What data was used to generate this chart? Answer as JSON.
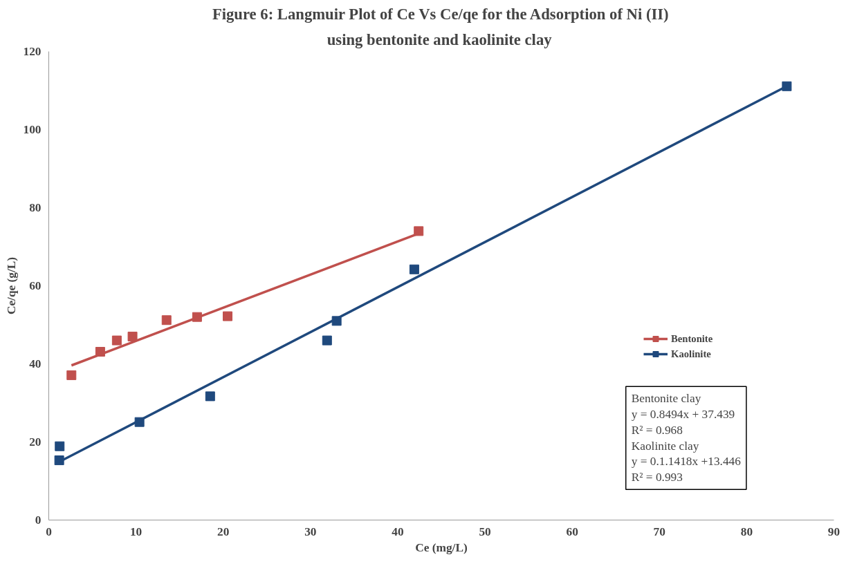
{
  "chart_data": {
    "type": "scatter",
    "title": "Figure 6: Langmuir Plot of Ce Vs Ce/qe for the Adsorption of Ni (II)",
    "subtitle": "using  bentonite and kaolinite clay",
    "xlabel": "Ce (mg/L)",
    "ylabel": "Ce/qe (g/L)",
    "xlim": [
      0,
      90
    ],
    "xticks": [
      0,
      10,
      20,
      30,
      40,
      50,
      60,
      70,
      80,
      90
    ],
    "ylim": [
      0,
      120
    ],
    "yticks": [
      0,
      20,
      40,
      60,
      80,
      100,
      120
    ],
    "grid": false,
    "legend": "right",
    "marker": "square",
    "series": [
      {
        "name": "Bentonite",
        "color": "#c0504d",
        "x": [
          2.6,
          5.9,
          7.8,
          9.6,
          13.5,
          17.0,
          20.5,
          42.4
        ],
        "values": [
          37.1,
          43.1,
          46.0,
          47.0,
          51.2,
          52.0,
          52.2,
          74.0
        ]
      },
      {
        "type": "line",
        "marker": "none",
        "color": "#c0504d",
        "x": [
          2.6,
          42.4
        ],
        "values": [
          39.6,
          73.4
        ]
      },
      {
        "name": "Kaolinite",
        "color": "#1f497d",
        "x": [
          1.25,
          1.2,
          10.4,
          18.5,
          31.9,
          33.0,
          41.9,
          84.6
        ],
        "values": [
          18.9,
          15.3,
          25.1,
          31.7,
          46.0,
          51.0,
          64.2,
          111.1
        ]
      },
      {
        "type": "line",
        "marker": "none",
        "color": "#1f497d",
        "x": [
          1.2,
          84.6
        ],
        "values": [
          14.9,
          111.1
        ]
      }
    ],
    "annotations": [
      "Bentonite clay",
      "y = 0.8494x + 37.439",
      "R² = 0.968",
      "Kaolinite clay",
      "y = 0.1.1418x +13.446",
      "R² = 0.993"
    ]
  }
}
